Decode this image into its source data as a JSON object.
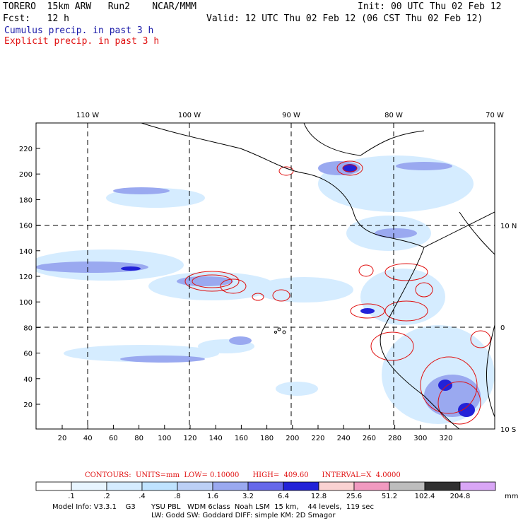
{
  "header": {
    "model_title": "TORERO  15km ARW   Run2    NCAR/MMM",
    "init": "Init: 00 UTC Thu 02 Feb 12",
    "fcst": "Fcst:   12 h",
    "valid": "Valid: 12 UTC Thu 02 Feb 12 (06 CST Thu 02 Feb 12)",
    "cumulus_label": "Cumulus precip. in past 3 h",
    "explicit_label": "Explicit precip. in past 3 h"
  },
  "colors": {
    "cumulus": "#1a1aa8",
    "explicit": "#e01010",
    "border": "#000000"
  },
  "map": {
    "x_ticks": [
      "20",
      "40",
      "60",
      "80",
      "100",
      "120",
      "140",
      "160",
      "180",
      "200",
      "220",
      "240",
      "260",
      "280",
      "300",
      "320"
    ],
    "y_ticks": [
      "20",
      "40",
      "60",
      "80",
      "100",
      "120",
      "140",
      "160",
      "180",
      "200",
      "220"
    ],
    "lon_labels": [
      "110 W",
      "100 W",
      "90 W",
      "80 W",
      "70 W"
    ],
    "lat_labels": [
      "10 N",
      "0",
      "10 S"
    ]
  },
  "contours": {
    "label": "CONTOURS:  UNITS=mm  LOW= 0.10000      HIGH=  409.60      INTERVAL=X  4.0000"
  },
  "colorbar": {
    "unit": "mm",
    "levels": [
      ".1",
      ".2",
      ".4",
      ".8",
      "1.6",
      "3.2",
      "6.4",
      "12.8",
      "25.6",
      "51.2",
      "102.4",
      "204.8"
    ],
    "colors": [
      "#ffffff",
      "#e8f5ff",
      "#d5ecff",
      "#bfe3ff",
      "#bcd0f6",
      "#9aa9f0",
      "#6668ea",
      "#2222d8",
      "#fad2d2",
      "#f19ac0",
      "#bdbdbd",
      "#303030",
      "#d9a6f6"
    ]
  },
  "model_info": {
    "line1": "Model Info: V3.3.1    G3       YSU PBL   WDM 6class  Noah LSM  15 km,    44 levels,  119 sec",
    "line2": "LW: Godd SW: Goddard DIFF: simple KM: 2D Smagor"
  }
}
